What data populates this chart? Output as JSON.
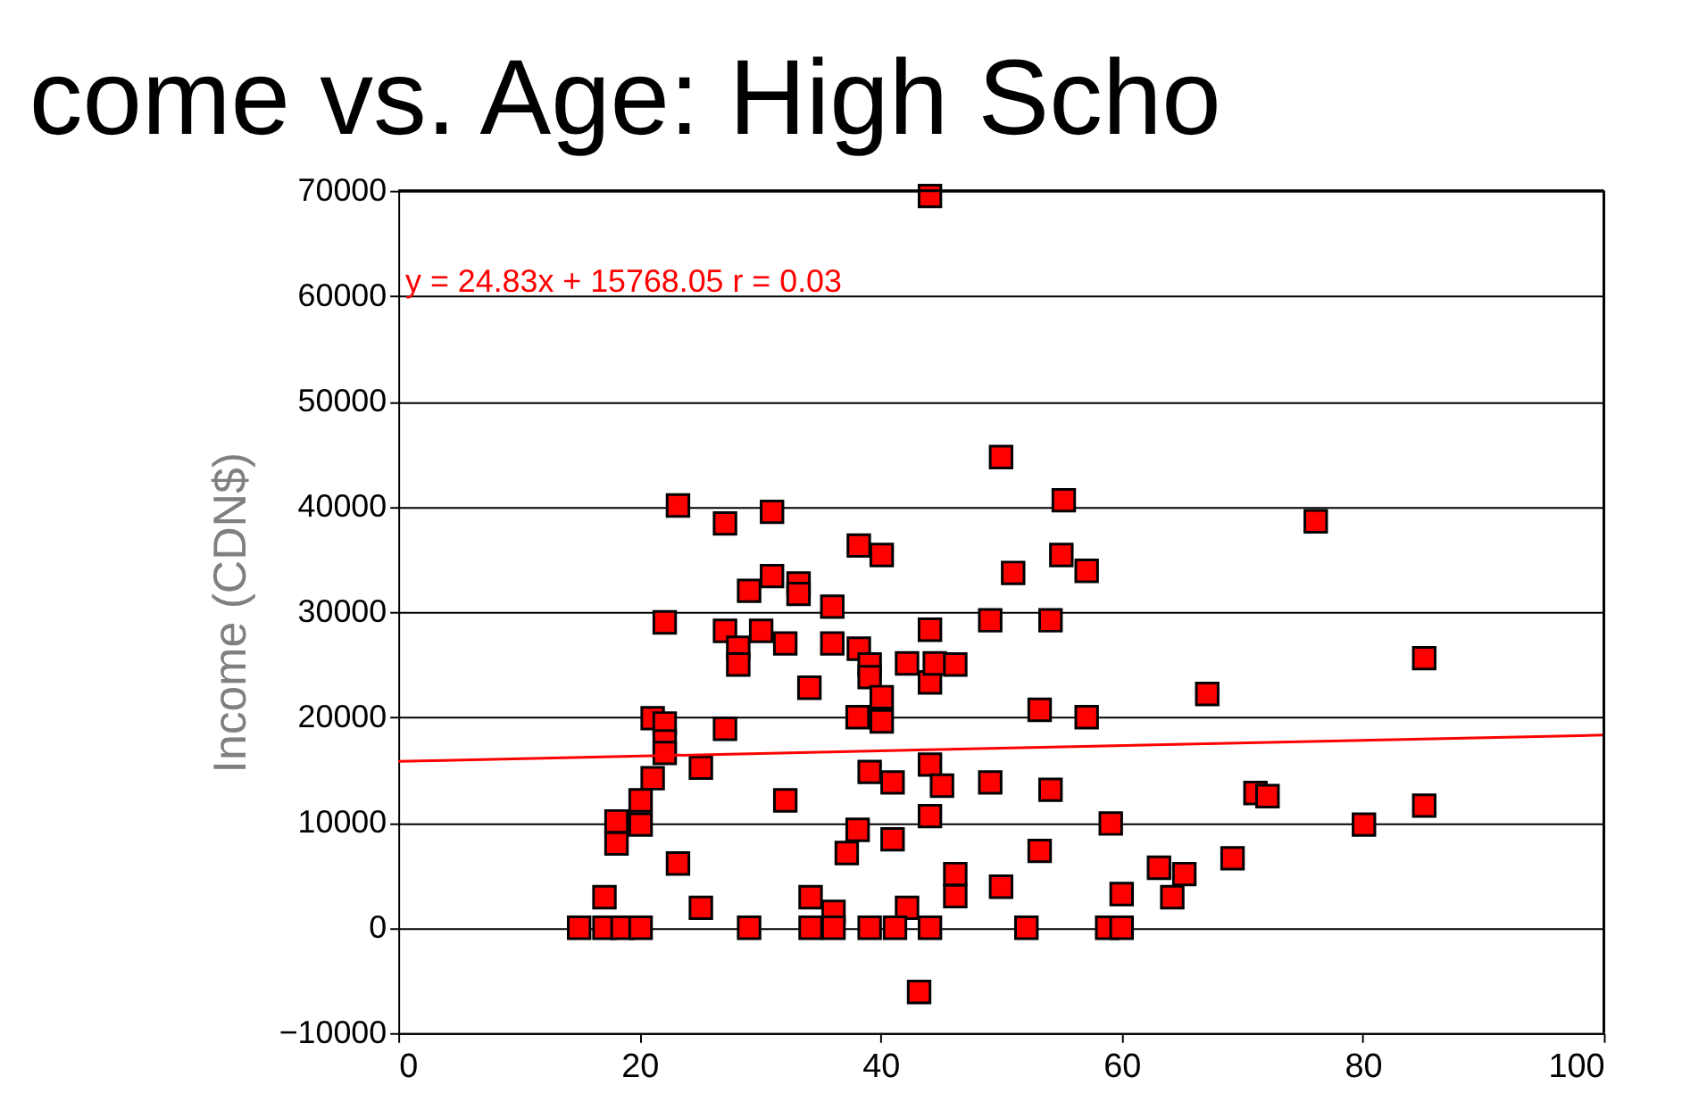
{
  "chart_data": {
    "type": "scatter",
    "title": "come vs. Age: High Scho",
    "ylabel": "Income (CDN$)",
    "xlim": [
      0,
      100
    ],
    "xticks": [
      0,
      20,
      40,
      60,
      80,
      100
    ],
    "ylim": [
      -10000,
      70000
    ],
    "yticks": [
      -10000,
      0,
      10000,
      20000,
      30000,
      40000,
      50000,
      60000,
      70000
    ],
    "grid": "y",
    "marker": "square",
    "annotations": [
      "y = 24.83x + 15768.05 r = 0.03"
    ],
    "series": [
      {
        "type": "scatter",
        "color": "#ff0000",
        "x": [
          44.1,
          50,
          23.2,
          27.1,
          31,
          38.2,
          40.1,
          51,
          29.1,
          31,
          33.2,
          33.2,
          36,
          55.2,
          76.1,
          55,
          57.1,
          49.1,
          54.1,
          22.1,
          27.1,
          28.2,
          28.2,
          30.1,
          32.1,
          36,
          38.2,
          39.1,
          39.1,
          40.1,
          38.1,
          40.1,
          42.2,
          44.1,
          44.1,
          44.5,
          46.2,
          34.1,
          21.1,
          22.1,
          22.1,
          22.1,
          27.1,
          25.1,
          21.1,
          20.1,
          20.1,
          18.1,
          18.1,
          32.1,
          39.1,
          41,
          44.1,
          45.1,
          49.1,
          38.1,
          41,
          37.2,
          44.1,
          23.2,
          46.2,
          46.2,
          50,
          17.1,
          25.1,
          34.2,
          36.1,
          42.2,
          15,
          17.1,
          18.6,
          20.1,
          29.1,
          34.2,
          36.1,
          39.1,
          41.2,
          44.1,
          52.1,
          43.2,
          85.1,
          67.1,
          53.2,
          57.1,
          54.1,
          71.1,
          72.1,
          85.1,
          59.1,
          80.1,
          53.2,
          69.2,
          63.1,
          65.2,
          64.2,
          60,
          58.8,
          60
        ],
        "values": [
          69500,
          44700,
          40100,
          38400,
          39500,
          36300,
          35400,
          33700,
          32000,
          33400,
          32700,
          31700,
          30500,
          40600,
          38600,
          35400,
          33900,
          29200,
          29200,
          29000,
          28200,
          26600,
          25000,
          28200,
          27000,
          27000,
          26500,
          25000,
          23800,
          21900,
          20000,
          19600,
          25100,
          28300,
          23300,
          25100,
          25000,
          22800,
          19900,
          19400,
          17700,
          16600,
          18900,
          15200,
          14200,
          12100,
          9800,
          10100,
          8000,
          12100,
          14800,
          13800,
          15500,
          13500,
          13800,
          9300,
          8400,
          7100,
          10600,
          6100,
          5100,
          3000,
          3900,
          2900,
          1900,
          2900,
          1500,
          1900,
          0,
          0,
          0,
          0,
          0,
          0,
          0,
          0,
          0,
          0,
          0,
          -6100,
          25600,
          22200,
          20700,
          20000,
          13100,
          12800,
          12500,
          11600,
          9900,
          9800,
          7300,
          6600,
          5700,
          5100,
          2900,
          3200,
          0,
          0
        ]
      },
      {
        "type": "line",
        "color": "#ff0000",
        "x": [
          0,
          100
        ],
        "values": [
          15800,
          18300
        ],
        "marker": "none",
        "line_style": "solid"
      }
    ]
  }
}
